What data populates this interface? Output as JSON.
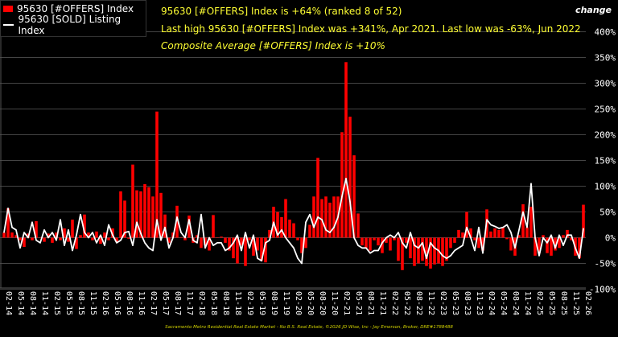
{
  "header": {
    "change_label": "change",
    "line1": "95630 [#OFFERS] Index is +64% (ranked 8 of 52)",
    "line2": "Last high 95630 [#OFFERS] Index was +341%, Apr 2021. Last low was -63%, Jun 2022",
    "line3": "Composite Average [#OFFERS] Index is +10%"
  },
  "footer": "Sacramento Metro Residential Real Estate Market - No B.S. Real Estate, ©2026 JD Wise, Inc - Jay Emerson, Broker, DRE#1788488",
  "colors": {
    "bars": "#ff0000",
    "line": "#ffffff",
    "text": "#ffff33",
    "grid": "#444444",
    "background": "#000000"
  },
  "chart_data": {
    "type": "bar+line",
    "legend": [
      "95630 [#OFFERS] Index",
      "95630 [SOLD] Listing Index"
    ],
    "legend_placement": "top-left",
    "ylim": [
      -100,
      400
    ],
    "yticks": [
      "400%",
      "350%",
      "300%",
      "250%",
      "200%",
      "150%",
      "100%",
      "50%",
      "0%",
      "-50%",
      "-100%"
    ],
    "ytick_values": [
      400,
      350,
      300,
      250,
      200,
      150,
      100,
      50,
      0,
      -50,
      -100
    ],
    "grid": true,
    "x_start": "02-14",
    "x_labels": [
      "02-14",
      "05-14",
      "08-14",
      "11-14",
      "02-15",
      "05-15",
      "08-15",
      "11-15",
      "02-16",
      "05-16",
      "08-16",
      "11-16",
      "02-17",
      "05-17",
      "08-17",
      "11-17",
      "02-18",
      "05-18",
      "08-18",
      "11-18",
      "02-19",
      "05-19",
      "08-19",
      "11-19",
      "02-20",
      "05-20",
      "08-20",
      "11-20",
      "02-21",
      "05-21",
      "08-21",
      "11-21",
      "02-22",
      "05-22",
      "08-22",
      "11-22",
      "02-23",
      "05-23",
      "08-23",
      "11-23",
      "02-24",
      "05-24",
      "08-24",
      "11-24",
      "02-25",
      "05-25",
      "08-25",
      "11-25",
      "02-26"
    ],
    "series": [
      {
        "name": "95630 [#OFFERS] Index",
        "type": "bar",
        "values": [
          10,
          57,
          10,
          5,
          -5,
          -18,
          8,
          -5,
          32,
          0,
          -8,
          8,
          -10,
          10,
          -5,
          18,
          -8,
          35,
          -22,
          5,
          45,
          10,
          -5,
          12,
          -12,
          10,
          -5,
          18,
          -8,
          90,
          72,
          -2,
          142,
          92,
          90,
          104,
          98,
          80,
          245,
          87,
          45,
          -10,
          10,
          62,
          0,
          -5,
          43,
          -10,
          5,
          -20,
          -15,
          -25,
          44,
          0,
          2,
          -10,
          -25,
          -40,
          -50,
          -15,
          -55,
          -5,
          -35,
          -25,
          -45,
          -48,
          15,
          60,
          50,
          40,
          75,
          35,
          28,
          -5,
          -30,
          -20,
          25,
          80,
          155,
          75,
          80,
          68,
          80,
          80,
          205,
          341,
          235,
          160,
          47,
          -15,
          -20,
          -25,
          -5,
          -15,
          -30,
          -10,
          -25,
          -5,
          -45,
          -63,
          -10,
          -40,
          -55,
          -50,
          -45,
          -55,
          -60,
          -52,
          -50,
          -55,
          -45,
          -20,
          -10,
          15,
          10,
          50,
          18,
          -5,
          -20,
          -25,
          55,
          12,
          18,
          15,
          20,
          -3,
          -25,
          -35,
          5,
          65,
          20,
          60,
          -35,
          -30,
          5,
          -30,
          -35,
          -25,
          -20,
          5,
          15,
          -5,
          -35,
          -40,
          64
        ]
      },
      {
        "name": "95630 [SOLD] Listing Index",
        "type": "line",
        "values": [
          10,
          57,
          20,
          15,
          -20,
          10,
          0,
          30,
          -5,
          -10,
          15,
          0,
          10,
          -5,
          35,
          -15,
          15,
          -25,
          5,
          45,
          10,
          0,
          10,
          -10,
          5,
          -15,
          25,
          5,
          -10,
          -5,
          10,
          12,
          -15,
          30,
          8,
          -10,
          -20,
          -25,
          35,
          -5,
          20,
          -20,
          0,
          40,
          10,
          0,
          35,
          -5,
          -10,
          45,
          -20,
          0,
          -15,
          -10,
          -10,
          -25,
          -20,
          -10,
          5,
          -25,
          10,
          -20,
          5,
          -40,
          -45,
          -10,
          -5,
          30,
          5,
          15,
          0,
          -10,
          -20,
          -40,
          -50,
          30,
          45,
          20,
          40,
          35,
          15,
          10,
          20,
          40,
          80,
          115,
          70,
          0,
          -15,
          -20,
          -20,
          -30,
          -25,
          -25,
          -10,
          0,
          5,
          0,
          10,
          -10,
          -20,
          10,
          -15,
          -20,
          -10,
          -40,
          -10,
          -20,
          -25,
          -35,
          -40,
          -35,
          -25,
          -20,
          -15,
          20,
          0,
          -25,
          20,
          -30,
          35,
          25,
          22,
          18,
          20,
          25,
          10,
          -20,
          15,
          50,
          20,
          105,
          0,
          -35,
          0,
          -10,
          5,
          -20,
          5,
          -15,
          5,
          5,
          -20,
          -40,
          18
        ]
      }
    ]
  }
}
